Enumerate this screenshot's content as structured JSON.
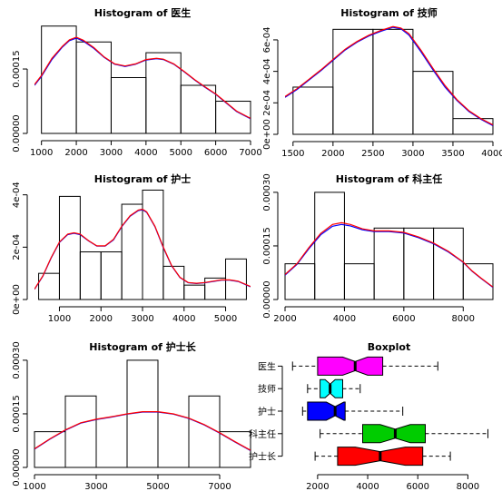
{
  "chart_data": [
    {
      "type": "histogram",
      "title": "Histogram of 医生",
      "xlim": [
        800,
        7000
      ],
      "ylim": [
        0,
        0.00026
      ],
      "x_ticks": [
        1000,
        2000,
        3000,
        4000,
        5000,
        6000,
        7000
      ],
      "x_tick_labels": [
        "1000",
        "2000",
        "3000",
        "4000",
        "5000",
        "6000",
        "7000"
      ],
      "y_ticks": [
        0,
        0.00015
      ],
      "y_tick_labels": [
        "0.00000",
        "0.00015"
      ],
      "bins": [
        {
          "from": 1000,
          "to": 2000,
          "density": 0.00025
        },
        {
          "from": 2000,
          "to": 3000,
          "density": 0.000213
        },
        {
          "from": 3000,
          "to": 4000,
          "density": 0.00013
        },
        {
          "from": 4000,
          "to": 5000,
          "density": 0.000188
        },
        {
          "from": 5000,
          "to": 6000,
          "density": 0.000112
        },
        {
          "from": 6000,
          "to": 7000,
          "density": 7.5e-05
        }
      ],
      "density_curve": {
        "x": [
          800,
          1000,
          1300,
          1600,
          1800,
          2000,
          2200,
          2500,
          2800,
          3100,
          3400,
          3700,
          4000,
          4300,
          4500,
          4800,
          5100,
          5400,
          5700,
          6000,
          6300,
          6600,
          7000
        ],
        "y": [
          0.000114,
          0.000135,
          0.000175,
          0.000203,
          0.000218,
          0.000224,
          0.000217,
          0.0002,
          0.000178,
          0.000162,
          0.000157,
          0.000162,
          0.000172,
          0.000175,
          0.000173,
          0.000162,
          0.000144,
          0.000125,
          0.000108,
          9.2e-05,
          7.2e-05,
          5.2e-05,
          3.5e-05
        ]
      },
      "density_curve_2": {
        "x": [
          800,
          1000,
          1300,
          1600,
          1800,
          2000,
          2200,
          2500,
          2800,
          3100,
          3400,
          3700,
          4000,
          4300,
          4500,
          4800,
          5100,
          5400,
          5700,
          6000,
          6300,
          6600,
          7000
        ],
        "y": [
          0.000112,
          0.000133,
          0.000172,
          0.000201,
          0.000216,
          0.000222,
          0.000215,
          0.000198,
          0.000177,
          0.000161,
          0.000156,
          0.000161,
          0.000171,
          0.000174,
          0.000172,
          0.000161,
          0.000143,
          0.000124,
          0.000107,
          9.1e-05,
          7.1e-05,
          5.1e-05,
          3.4e-05
        ]
      }
    },
    {
      "type": "histogram",
      "title": "Histogram of 技师",
      "xlim": [
        1400,
        4000
      ],
      "ylim": [
        0,
        0.000715
      ],
      "x_ticks": [
        1500,
        2000,
        2500,
        3000,
        3500,
        4000
      ],
      "x_tick_labels": [
        "1500",
        "2000",
        "2500",
        "3000",
        "3500",
        "4000"
      ],
      "y_ticks": [
        0,
        0.0002,
        0.0004,
        0.0006
      ],
      "y_tick_labels": [
        "0e+00",
        "2e-04",
        "4e-04",
        "6e-04"
      ],
      "bins": [
        {
          "from": 1500,
          "to": 2000,
          "density": 0.0003
        },
        {
          "from": 2000,
          "to": 2500,
          "density": 0.000667
        },
        {
          "from": 2500,
          "to": 3000,
          "density": 0.000667
        },
        {
          "from": 3000,
          "to": 3500,
          "density": 0.0004
        },
        {
          "from": 3500,
          "to": 4000,
          "density": 0.0001
        }
      ],
      "density_curve": {
        "x": [
          1400,
          1550,
          1700,
          1850,
          2000,
          2150,
          2300,
          2450,
          2600,
          2750,
          2850,
          2950,
          3100,
          3250,
          3400,
          3550,
          3700,
          3850,
          4000
        ],
        "y": [
          0.00024,
          0.00029,
          0.00035,
          0.00041,
          0.000475,
          0.00054,
          0.00059,
          0.00063,
          0.00066,
          0.000685,
          0.000675,
          0.00064,
          0.000535,
          0.00042,
          0.00031,
          0.00022,
          0.00015,
          0.0001,
          6e-05
        ]
      },
      "density_curve_2": {
        "x": [
          1400,
          1550,
          1700,
          1850,
          2000,
          2150,
          2300,
          2450,
          2600,
          2750,
          2850,
          2950,
          3100,
          3250,
          3400,
          3550,
          3700,
          3850,
          4000
        ],
        "y": [
          0.000235,
          0.000285,
          0.000345,
          0.000405,
          0.00047,
          0.000535,
          0.000585,
          0.000625,
          0.000655,
          0.00068,
          0.00067,
          0.00063,
          0.000525,
          0.00041,
          0.0003,
          0.000215,
          0.000145,
          9.5e-05,
          5.5e-05
        ]
      }
    },
    {
      "type": "histogram",
      "title": "Histogram of 护士",
      "xlim": [
        400,
        5600
      ],
      "ylim": [
        0,
        0.00043
      ],
      "x_ticks": [
        1000,
        2000,
        3000,
        4000,
        5000
      ],
      "x_tick_labels": [
        "1000",
        "2000",
        "3000",
        "4000",
        "5000"
      ],
      "y_ticks": [
        0,
        0.0002,
        0.0004
      ],
      "y_tick_labels": [
        "0e+00",
        "2e-04",
        "4e-04"
      ],
      "bins": [
        {
          "from": 500,
          "to": 1000,
          "density": 0.0001
        },
        {
          "from": 1000,
          "to": 1500,
          "density": 0.000394
        },
        {
          "from": 1500,
          "to": 2000,
          "density": 0.000182
        },
        {
          "from": 2000,
          "to": 2500,
          "density": 0.000182
        },
        {
          "from": 2500,
          "to": 3000,
          "density": 0.000364
        },
        {
          "from": 3000,
          "to": 3500,
          "density": 0.000418
        },
        {
          "from": 3500,
          "to": 4000,
          "density": 0.000127
        },
        {
          "from": 4000,
          "to": 4500,
          "density": 5.5e-05
        },
        {
          "from": 4500,
          "to": 5000,
          "density": 8.2e-05
        },
        {
          "from": 5000,
          "to": 5500,
          "density": 0.000155
        }
      ],
      "density_curve": {
        "x": [
          400,
          600,
          800,
          1000,
          1200,
          1350,
          1500,
          1700,
          1900,
          2100,
          2300,
          2500,
          2700,
          2900,
          3000,
          3100,
          3300,
          3500,
          3700,
          3900,
          4100,
          4300,
          4500,
          4700,
          4900,
          5100,
          5300,
          5600
        ],
        "y": [
          4e-05,
          9e-05,
          0.00016,
          0.00022,
          0.00025,
          0.000255,
          0.00025,
          0.000225,
          0.000205,
          0.000205,
          0.00023,
          0.00028,
          0.00032,
          0.000342,
          0.000345,
          0.000335,
          0.00028,
          0.0002,
          0.00013,
          8.5e-05,
          6.5e-05,
          6.2e-05,
          6.5e-05,
          7e-05,
          7.5e-05,
          7.5e-05,
          7e-05,
          5e-05
        ]
      },
      "density_curve_2": {
        "x": [
          400,
          600,
          800,
          1000,
          1200,
          1350,
          1500,
          1700,
          1900,
          2100,
          2300,
          2500,
          2700,
          2900,
          3000,
          3100,
          3300,
          3500,
          3700,
          3900,
          4100,
          4300,
          4500,
          4700,
          4900,
          5100,
          5300,
          5600
        ],
        "y": [
          3.9e-05,
          8.9e-05,
          0.000158,
          0.000218,
          0.000248,
          0.000253,
          0.000248,
          0.000224,
          0.000204,
          0.000204,
          0.000228,
          0.000278,
          0.000318,
          0.00034,
          0.000343,
          0.000333,
          0.000278,
          0.000198,
          0.000129,
          8.4e-05,
          6.4e-05,
          6.1e-05,
          6.4e-05,
          6.9e-05,
          7.4e-05,
          7.4e-05,
          6.9e-05,
          4.9e-05
        ]
      }
    },
    {
      "type": "histogram",
      "title": "Histogram of 科主任",
      "xlim": [
        2000,
        9000
      ],
      "ylim": [
        0,
        0.000315
      ],
      "x_ticks": [
        2000,
        4000,
        6000,
        8000
      ],
      "x_tick_labels": [
        "2000",
        "4000",
        "6000",
        "8000"
      ],
      "y_ticks": [
        0,
        0.00015,
        0.0003
      ],
      "y_tick_labels": [
        "0.00000",
        "0.00015",
        "0.00030"
      ],
      "bins": [
        {
          "from": 2000,
          "to": 3000,
          "density": 0.0001
        },
        {
          "from": 3000,
          "to": 4000,
          "density": 0.0003
        },
        {
          "from": 4000,
          "to": 5000,
          "density": 0.0001
        },
        {
          "from": 5000,
          "to": 6000,
          "density": 0.0002
        },
        {
          "from": 6000,
          "to": 7000,
          "density": 0.0002
        },
        {
          "from": 7000,
          "to": 8000,
          "density": 0.0002
        },
        {
          "from": 8000,
          "to": 9000,
          "density": 0.0001
        }
      ],
      "density_curve": {
        "x": [
          2000,
          2400,
          2800,
          3200,
          3600,
          3900,
          4200,
          4600,
          5000,
          5500,
          6000,
          6500,
          7000,
          7500,
          8000,
          8300,
          8600,
          9000
        ],
        "y": [
          7e-05,
          0.0001,
          0.000145,
          0.000185,
          0.00021,
          0.000215,
          0.00021,
          0.000198,
          0.000192,
          0.000192,
          0.000188,
          0.000175,
          0.000158,
          0.000135,
          0.000105,
          8e-05,
          6e-05,
          3.5e-05
        ]
      },
      "density_curve_2": {
        "x": [
          2000,
          2400,
          2800,
          3200,
          3600,
          3900,
          4200,
          4600,
          5000,
          5500,
          6000,
          6500,
          7000,
          7500,
          8000,
          8300,
          8600,
          9000
        ],
        "y": [
          6.8e-05,
          9.8e-05,
          0.000142,
          0.000181,
          0.000205,
          0.00021,
          0.000206,
          0.000195,
          0.00019,
          0.00019,
          0.000186,
          0.000173,
          0.000156,
          0.000133,
          0.000104,
          7.9e-05,
          5.9e-05,
          3.4e-05
        ]
      }
    },
    {
      "type": "histogram",
      "title": "Histogram of 护士长",
      "xlim": [
        1000,
        8000
      ],
      "ylim": [
        0,
        0.000315
      ],
      "x_ticks": [
        1000,
        3000,
        5000,
        7000
      ],
      "x_tick_labels": [
        "1000",
        "3000",
        "5000",
        "7000"
      ],
      "y_ticks": [
        0,
        0.00015,
        0.0003
      ],
      "y_tick_labels": [
        "0.00000",
        "0.00015",
        "0.00030"
      ],
      "bins": [
        {
          "from": 1000,
          "to": 2000,
          "density": 0.0001
        },
        {
          "from": 2000,
          "to": 3000,
          "density": 0.0002
        },
        {
          "from": 3000,
          "to": 4000,
          "density": 0.0
        },
        {
          "from": 4000,
          "to": 5000,
          "density": 0.0003
        },
        {
          "from": 5000,
          "to": 6000,
          "density": 0.0
        },
        {
          "from": 6000,
          "to": 7000,
          "density": 0.0002
        },
        {
          "from": 7000,
          "to": 8000,
          "density": 0.0001
        }
      ],
      "density_curve": {
        "x": [
          1000,
          1500,
          2000,
          2500,
          3000,
          3500,
          4000,
          4500,
          5000,
          5500,
          6000,
          6500,
          7000,
          7500,
          8000
        ],
        "y": [
          5.2e-05,
          8e-05,
          0.000105,
          0.000125,
          0.000135,
          0.000142,
          0.00015,
          0.000156,
          0.000156,
          0.00015,
          0.000138,
          0.00012,
          9.7e-05,
          7.2e-05,
          4.8e-05
        ]
      },
      "density_curve_2": {
        "x": [
          1000,
          1500,
          2000,
          2500,
          3000,
          3500,
          4000,
          4500,
          5000,
          5500,
          6000,
          6500,
          7000,
          7500,
          8000
        ],
        "y": [
          5.1e-05,
          7.9e-05,
          0.000104,
          0.000124,
          0.000134,
          0.000141,
          0.000149,
          0.000155,
          0.000155,
          0.000149,
          0.000137,
          0.000119,
          9.6e-05,
          7.1e-05,
          4.7e-05
        ]
      }
    },
    {
      "type": "boxplot",
      "title": "Boxplot",
      "horizontal": true,
      "notched": true,
      "xlim": [
        700,
        9000
      ],
      "x_ticks": [
        2000,
        4000,
        6000,
        8000
      ],
      "x_tick_labels": [
        "2000",
        "4000",
        "6000",
        "8000"
      ],
      "groups": [
        {
          "name": "医生",
          "color": "#ff00ff",
          "min": 1000,
          "q1": 2000,
          "median": 3500,
          "q3": 4600,
          "max": 6800,
          "notch": [
            3000,
            4000
          ]
        },
        {
          "name": "技师",
          "color": "#00ffff",
          "min": 1600,
          "q1": 2100,
          "median": 2500,
          "q3": 3000,
          "max": 3700,
          "notch": [
            2300,
            2700
          ]
        },
        {
          "name": "护士",
          "color": "#0000ff",
          "min": 1400,
          "q1": 1600,
          "median": 2700,
          "q3": 3100,
          "max": 5400,
          "notch": [
            2350,
            3050
          ]
        },
        {
          "name": "科主任",
          "color": "#00cc00",
          "min": 2100,
          "q1": 3800,
          "median": 5100,
          "q3": 6300,
          "max": 8800,
          "notch": [
            4500,
            5700
          ]
        },
        {
          "name": "护士长",
          "color": "#ff0000",
          "min": 1900,
          "q1": 2800,
          "median": 4500,
          "q3": 6200,
          "max": 7300,
          "notch": [
            3500,
            5500
          ]
        }
      ]
    }
  ],
  "colors": {
    "curve_primary": "#ff0000",
    "curve_secondary": "#0000ff",
    "axis": "#000000",
    "background": "#ffffff"
  }
}
